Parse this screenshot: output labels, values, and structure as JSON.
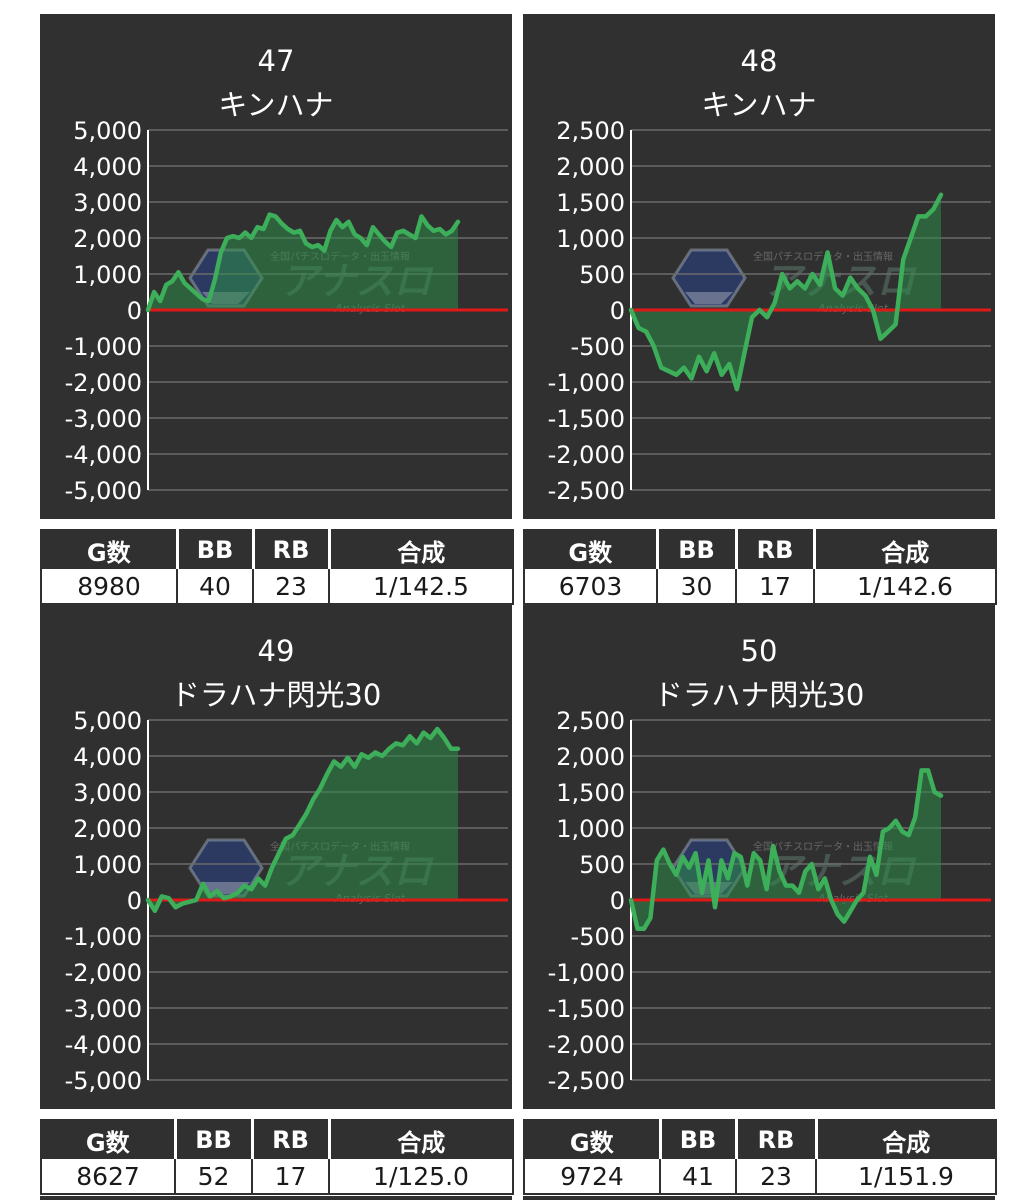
{
  "watermark": {
    "name": "アナスロ",
    "tagline": "—Analysis Slot—",
    "top_text": "全国パチスロデータ・出玉情報"
  },
  "table_headers": [
    "G数",
    "BB",
    "RB",
    "合成"
  ],
  "panels": [
    {
      "id": "47",
      "name": "キンハナ",
      "stats": {
        "games": "8980",
        "bb": "40",
        "rb": "23",
        "combined": "1/142.5"
      }
    },
    {
      "id": "48",
      "name": "キンハナ",
      "stats": {
        "games": "6703",
        "bb": "30",
        "rb": "17",
        "combined": "1/142.6"
      }
    },
    {
      "id": "49",
      "name": "ドラハナ閃光30",
      "stats": {
        "games": "8627",
        "bb": "52",
        "rb": "17",
        "combined": "1/125.0"
      }
    },
    {
      "id": "50",
      "name": "ドラハナ閃光30",
      "stats": {
        "games": "9724",
        "bb": "41",
        "rb": "23",
        "combined": "1/151.9"
      }
    }
  ],
  "colors": {
    "panel_bg": "#303030",
    "grid": "#6a6a6a",
    "axis": "#ffffff",
    "zero_line": "#e01818",
    "series": "#3dae5a",
    "fill": "rgba(46,140,72,0.55)",
    "table_header_bg": "#303030"
  },
  "chart_data": [
    {
      "type": "area",
      "ylim": [
        -5000,
        5000
      ],
      "yticks": [
        5000,
        4000,
        3000,
        2000,
        1000,
        0,
        -1000,
        -2000,
        -3000,
        -4000,
        -5000
      ],
      "ytick_labels": [
        "5,000",
        "4,000",
        "3,000",
        "2,000",
        "1,000",
        "0",
        "-1,000",
        "-2,000",
        "-3,000",
        "-4,000",
        "-5,000"
      ],
      "grid": true,
      "values": [
        0,
        500,
        250,
        700,
        800,
        1050,
        750,
        600,
        450,
        300,
        250,
        850,
        1600,
        2000,
        2050,
        2000,
        2150,
        2000,
        2300,
        2250,
        2650,
        2600,
        2400,
        2250,
        2150,
        2200,
        1850,
        1750,
        1800,
        1650,
        2200,
        2500,
        2300,
        2450,
        2100,
        2000,
        1800,
        2300,
        2100,
        1900,
        1750,
        2150,
        2200,
        2100,
        2000,
        2600,
        2350,
        2200,
        2250,
        2100,
        2200,
        2450
      ]
    },
    {
      "type": "area",
      "ylim": [
        -2500,
        2500
      ],
      "yticks": [
        2500,
        2000,
        1500,
        1000,
        500,
        0,
        -500,
        -1000,
        -1500,
        -2000,
        -2500
      ],
      "ytick_labels": [
        "2,500",
        "2,000",
        "1,500",
        "1,000",
        "500",
        "0",
        "-500",
        "-1,000",
        "-1,500",
        "-2,000",
        "-2,500"
      ],
      "grid": true,
      "values": [
        0,
        -250,
        -300,
        -500,
        -800,
        -850,
        -900,
        -800,
        -950,
        -650,
        -850,
        -600,
        -900,
        -750,
        -1100,
        -600,
        -100,
        0,
        -100,
        100,
        500,
        300,
        400,
        300,
        500,
        350,
        800,
        300,
        200,
        450,
        300,
        200,
        0,
        -400,
        -300,
        -200,
        700,
        1000,
        1300,
        1300,
        1400,
        1600
      ]
    },
    {
      "type": "area",
      "ylim": [
        -5000,
        5000
      ],
      "yticks": [
        5000,
        4000,
        3000,
        2000,
        1000,
        0,
        -1000,
        -2000,
        -3000,
        -4000,
        -5000
      ],
      "ytick_labels": [
        "5,000",
        "4,000",
        "3,000",
        "2,000",
        "1,000",
        "0",
        "-1,000",
        "-2,000",
        "-3,000",
        "-4,000",
        "-5,000"
      ],
      "grid": true,
      "values": [
        0,
        -300,
        100,
        50,
        -200,
        -100,
        -50,
        0,
        450,
        100,
        250,
        50,
        100,
        200,
        400,
        300,
        600,
        400,
        900,
        1300,
        1700,
        1800,
        2100,
        2400,
        2800,
        3100,
        3500,
        3850,
        3700,
        3950,
        3700,
        4050,
        3950,
        4100,
        4000,
        4200,
        4350,
        4300,
        4550,
        4350,
        4650,
        4500,
        4750,
        4500,
        4200,
        4200
      ]
    },
    {
      "type": "area",
      "ylim": [
        -2500,
        2500
      ],
      "yticks": [
        2500,
        2000,
        1500,
        1000,
        500,
        0,
        -500,
        -1000,
        -1500,
        -2000,
        -2500
      ],
      "ytick_labels": [
        "2,500",
        "2,000",
        "1,500",
        "1,000",
        "500",
        "0",
        "-500",
        "-1,000",
        "-1,500",
        "-2,000",
        "-2,500"
      ],
      "grid": true,
      "values": [
        0,
        -400,
        -400,
        -250,
        550,
        700,
        500,
        350,
        600,
        450,
        650,
        100,
        550,
        -100,
        550,
        300,
        650,
        600,
        200,
        650,
        550,
        150,
        750,
        400,
        200,
        200,
        100,
        400,
        500,
        150,
        300,
        0,
        -200,
        -300,
        -150,
        0,
        100,
        600,
        350,
        950,
        1000,
        1100,
        950,
        900,
        1150,
        1800,
        1800,
        1500,
        1450
      ]
    }
  ]
}
